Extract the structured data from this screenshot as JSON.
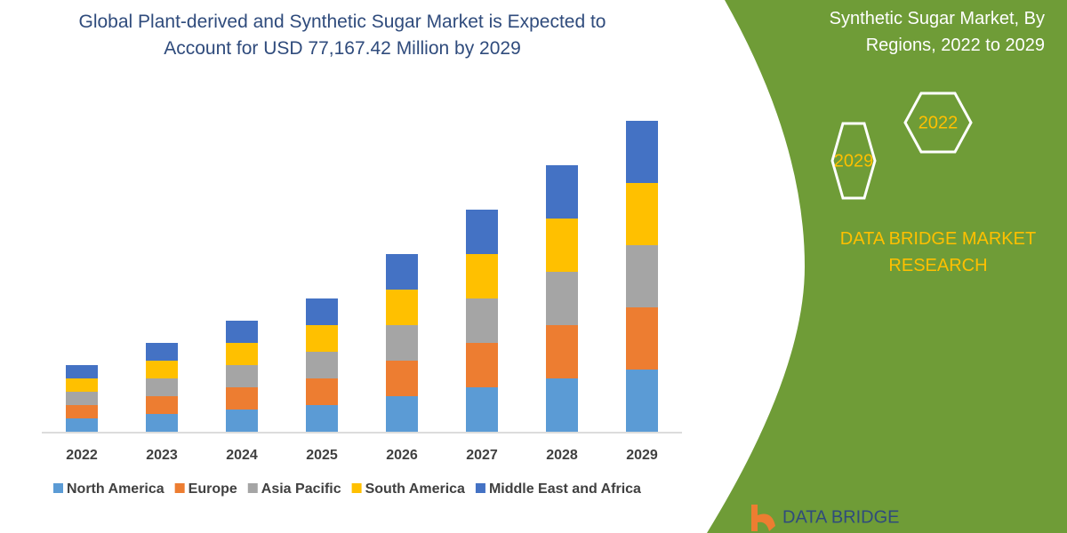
{
  "chart_data": {
    "type": "bar",
    "stacked": true,
    "title": "Global Plant-derived and Synthetic Sugar Market is Expected to Account for USD 77,167.42 Million by 2029",
    "categories": [
      "2022",
      "2023",
      "2024",
      "2025",
      "2026",
      "2027",
      "2028",
      "2029"
    ],
    "series": [
      {
        "name": "North America",
        "color": "#5b9bd5",
        "values": [
          15,
          20,
          25,
          30,
          40,
          50,
          60,
          70
        ]
      },
      {
        "name": "Europe",
        "color": "#ed7d31",
        "values": [
          15,
          20,
          25,
          30,
          40,
          50,
          60,
          70
        ]
      },
      {
        "name": "Asia Pacific",
        "color": "#a5a5a5",
        "values": [
          15,
          20,
          25,
          30,
          40,
          50,
          60,
          70
        ]
      },
      {
        "name": "South America",
        "color": "#ffc000",
        "values": [
          15,
          20,
          25,
          30,
          40,
          50,
          60,
          70
        ]
      },
      {
        "name": "Middle East and Africa",
        "color": "#4472c4",
        "values": [
          15,
          20,
          25,
          30,
          40,
          50,
          60,
          70
        ]
      }
    ]
  },
  "panel": {
    "title": "Synthetic Sugar Market, By Regions, 2022 to 2029",
    "hexagons": [
      "2029",
      "2022"
    ],
    "brand": "DATA BRIDGE MARKET RESEARCH",
    "logo": "DATA BRIDGE"
  }
}
